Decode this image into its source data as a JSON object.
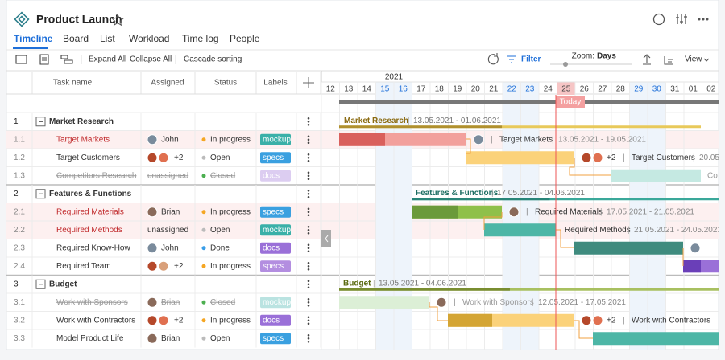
{
  "header": {
    "title": "Product Launch"
  },
  "tabs": [
    "Timeline",
    "Board",
    "List",
    "Workload",
    "Time log",
    "People"
  ],
  "toolbar": {
    "expand": "Expand All",
    "collapse": "Collapse All",
    "cascade": "Cascade sorting",
    "filter": "Filter",
    "zoom": "Zoom:",
    "zoom_level": "Days",
    "view": "View"
  },
  "table": {
    "columns": [
      "Task name",
      "Assigned",
      "Status",
      "Labels"
    ],
    "rows": [
      {
        "id": "1",
        "name": "Market Research"
      },
      {
        "id": "1.1",
        "name": "Target Markets",
        "assigned": "John",
        "status": "In progress",
        "label": "mockup"
      },
      {
        "id": "1.2",
        "name": "Target Customers",
        "assigned": "+2",
        "status": "Open",
        "label": "specs"
      },
      {
        "id": "1.3",
        "name": "Competitors Research",
        "assigned": "unassigned",
        "status": "Closed",
        "label": "docs"
      },
      {
        "id": "2",
        "name": "Features & Functions"
      },
      {
        "id": "2.1",
        "name": "Required Materials",
        "assigned": "Brian",
        "status": "In progress",
        "label": "specs"
      },
      {
        "id": "2.2",
        "name": "Required Methods",
        "assigned": "unassigned",
        "status": "Open",
        "label": "mockup"
      },
      {
        "id": "2.3",
        "name": "Required Know-How",
        "assigned": "John",
        "status": "Done",
        "label": "docs"
      },
      {
        "id": "2.4",
        "name": "Required Team",
        "assigned": "+2",
        "status": "In progress",
        "label": "specs"
      },
      {
        "id": "3",
        "name": "Budget"
      },
      {
        "id": "3.1",
        "name": "Work with Sponsors",
        "assigned": "Brian",
        "status": "Closed",
        "label": "mockup"
      },
      {
        "id": "3.2",
        "name": "Work with Contractors",
        "assigned": "+2",
        "status": "In progress",
        "label": "docs"
      },
      {
        "id": "3.3",
        "name": "Model Product Life",
        "assigned": "Brian",
        "status": "Open",
        "label": "specs"
      }
    ]
  },
  "gantt": {
    "year": "2021",
    "days": [
      "12",
      "13",
      "14",
      "15",
      "16",
      "17",
      "18",
      "19",
      "20",
      "21",
      "22",
      "23",
      "24",
      "25",
      "26",
      "27",
      "28",
      "29",
      "30",
      "31",
      "01",
      "02"
    ],
    "today": "Today",
    "bars": [
      {
        "label": "Market Research",
        "dates": "13.05.2021 - 01.06.2021"
      },
      {
        "label": "Target Markets",
        "dates": "13.05.2021 - 19.05.2021"
      },
      {
        "label": "Target Customers",
        "dates": "20.05"
      },
      {
        "label": "Co"
      },
      {
        "label": "Features & Functions",
        "dates": "17.05.2021 - 04.06.2021"
      },
      {
        "label": "Required Materials",
        "dates": "17.05.2021 - 21.05.2021"
      },
      {
        "label": "Required Methods",
        "dates": "21.05.2021 - 24.05.2021"
      },
      {},
      {},
      {
        "label": "Budget",
        "dates": "13.05.2021 - 04.06.2021"
      },
      {
        "label": "Work with Sponsors",
        "dates": "12.05.2021 - 17.05.2021"
      },
      {
        "label": "Work with Contractors"
      },
      {}
    ]
  }
}
